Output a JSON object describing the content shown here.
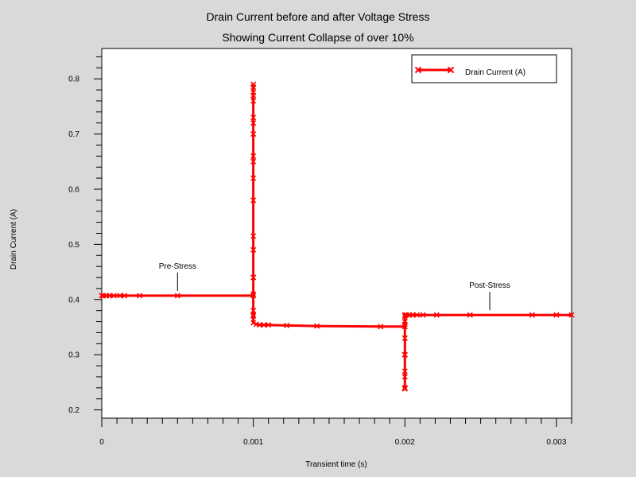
{
  "chart_data": {
    "type": "line",
    "title": "Drain Current before and after Voltage Stress",
    "subtitle": "Showing Current Collapse of over 10%",
    "xlabel": "Transient time (s)",
    "ylabel": "Drain Current (A)",
    "xlim": [
      0,
      0.0031
    ],
    "ylim": [
      0.185,
      0.855
    ],
    "x_ticks": [
      0,
      0.001,
      0.002,
      0.003
    ],
    "x_tick_labels": [
      "0",
      "0.001",
      "0.002",
      "0.003"
    ],
    "y_ticks": [
      0.2,
      0.3,
      0.4,
      0.5,
      0.6,
      0.7,
      0.8
    ],
    "y_tick_labels": [
      "0.2",
      "0.3",
      "0.4",
      "0.5",
      "0.6",
      "0.7",
      "0.8"
    ],
    "grid": false,
    "legend_position": "top-right",
    "color": "#ff0000",
    "series": [
      {
        "name": "Drain Current (A)",
        "x": [
          0,
          1e-05,
          3e-05,
          5e-05,
          8e-05,
          0.00012,
          0.00015,
          0.00025,
          0.0005,
          0.001,
          0.001,
          0.001,
          0.001,
          0.001,
          0.001,
          0.001,
          0.001,
          0.001,
          0.001,
          0.001,
          0.001,
          0.001,
          0.001,
          0.001,
          0.001,
          0.001,
          0.001,
          0.001,
          0.001,
          0.001,
          0.001,
          0.001,
          0.00102,
          0.00104,
          0.00107,
          0.0011,
          0.00122,
          0.00142,
          0.00184,
          0.002,
          0.002,
          0.002,
          0.002,
          0.002,
          0.002,
          0.002,
          0.002,
          0.002,
          0.002,
          0.002,
          0.002,
          0.002,
          0.002,
          0.002,
          0.002,
          0.002,
          0.002,
          0.00201,
          0.00203,
          0.00205,
          0.00208,
          0.00212,
          0.00221,
          0.00243,
          0.00284,
          0.003,
          0.0031
        ],
        "y": [
          0.407,
          0.407,
          0.407,
          0.407,
          0.407,
          0.407,
          0.407,
          0.407,
          0.407,
          0.407,
          0.372,
          0.38,
          0.41,
          0.44,
          0.49,
          0.515,
          0.58,
          0.65,
          0.66,
          0.7,
          0.72,
          0.73,
          0.76,
          0.775,
          0.785,
          0.79,
          0.79,
          0.77,
          0.62,
          0.44,
          0.37,
          0.358,
          0.355,
          0.354,
          0.354,
          0.354,
          0.353,
          0.352,
          0.351,
          0.351,
          0.33,
          0.3,
          0.27,
          0.24,
          0.238,
          0.26,
          0.3,
          0.33,
          0.24,
          0.3,
          0.355,
          0.24,
          0.36,
          0.3,
          0.36,
          0.37,
          0.372,
          0.372,
          0.372,
          0.372,
          0.372,
          0.372,
          0.372,
          0.372,
          0.372,
          0.372,
          0.372
        ]
      }
    ],
    "annotations": [
      {
        "text": "Pre-Stress",
        "x": 0.0005,
        "y": 0.407
      },
      {
        "text": "Post-Stress",
        "x": 0.00256,
        "y": 0.372
      }
    ]
  }
}
